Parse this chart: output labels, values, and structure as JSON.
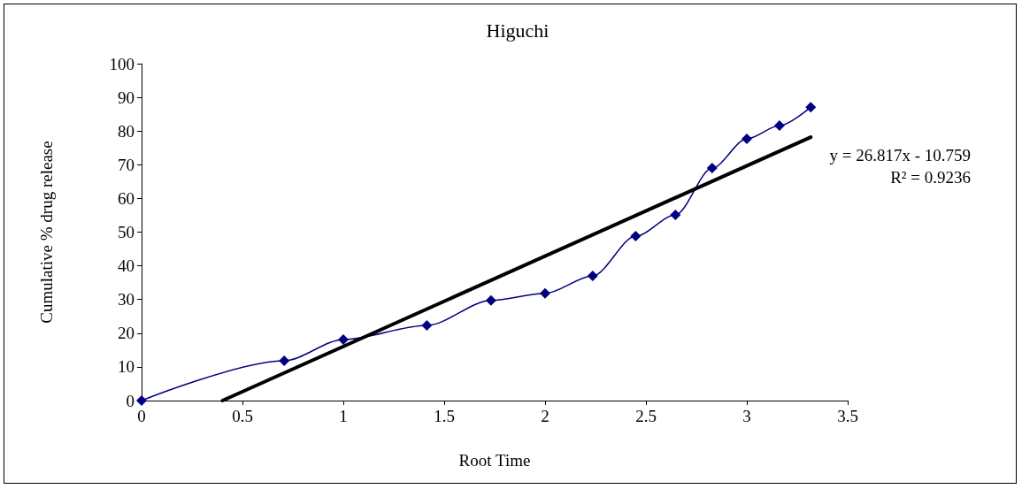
{
  "chart_data": {
    "type": "line",
    "title": "Higuchi",
    "xlabel": "Root Time",
    "ylabel": "Cumulative % drug release",
    "xlim": [
      0,
      3.5
    ],
    "xticks": [
      0,
      0.5,
      1,
      1.5,
      2,
      2.5,
      3,
      3.5
    ],
    "ylim": [
      0,
      100
    ],
    "yticks": [
      0,
      10,
      20,
      30,
      40,
      50,
      60,
      70,
      80,
      90,
      100
    ],
    "grid": false,
    "marker": "diamond",
    "series": [
      {
        "color": "#000080",
        "x": [
          0,
          0.707,
          1,
          1.414,
          1.732,
          2,
          2.236,
          2.449,
          2.646,
          2.828,
          3,
          3.162,
          3.317
        ],
        "values": [
          0,
          11.8,
          18.1,
          22.3,
          29.7,
          31.8,
          37,
          48.8,
          55.1,
          69,
          77.7,
          81.6,
          87.1
        ]
      },
      {
        "color": "#000000",
        "marker": "none",
        "x": [
          0.401,
          3.317
        ],
        "values": [
          0,
          78.2
        ]
      }
    ],
    "annotations": [
      "y = 26.817x - 10.759",
      "R² = 0.9236"
    ]
  }
}
